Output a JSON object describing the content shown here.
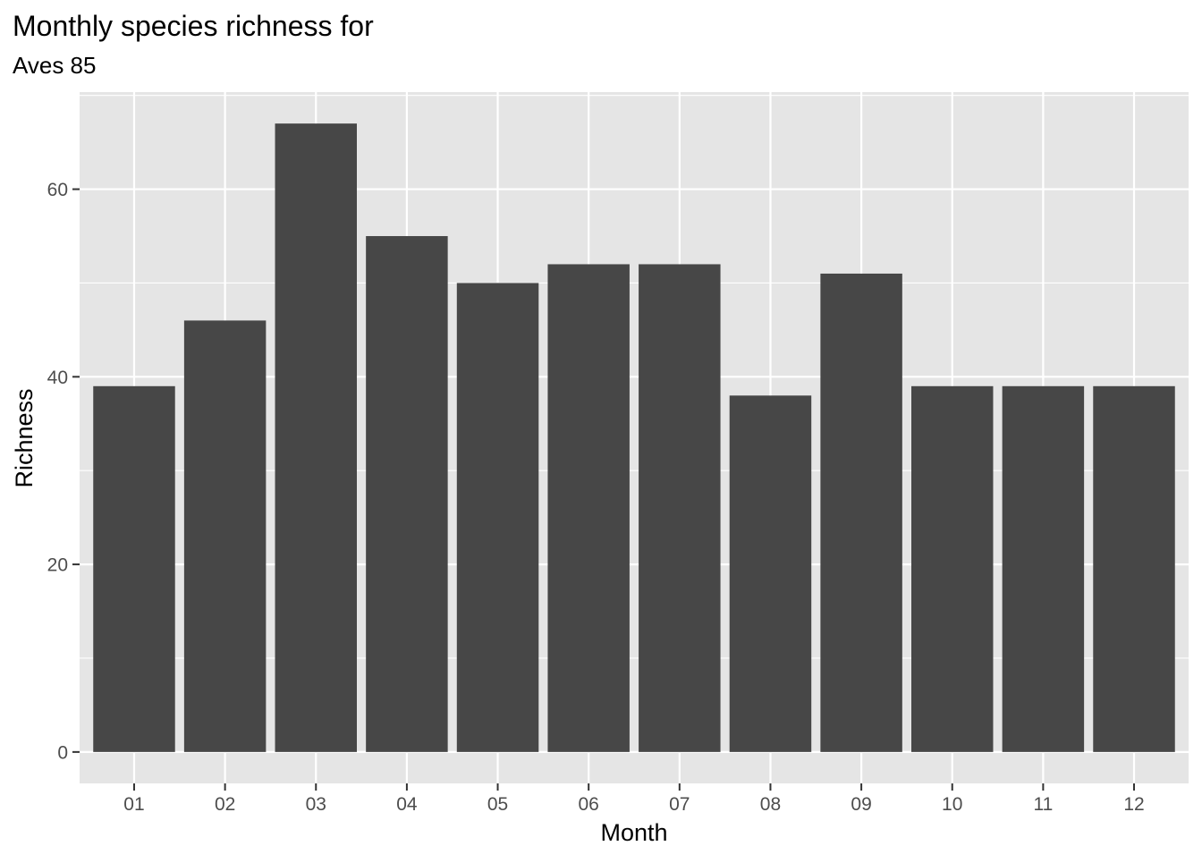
{
  "chart_data": {
    "type": "bar",
    "title": "Monthly species richness for",
    "subtitle": "Aves 85",
    "xlabel": "Month",
    "ylabel": "Richness",
    "categories": [
      "01",
      "02",
      "03",
      "04",
      "05",
      "06",
      "07",
      "08",
      "09",
      "10",
      "11",
      "12"
    ],
    "values": [
      39,
      46,
      67,
      55,
      50,
      52,
      52,
      38,
      51,
      39,
      39,
      39
    ],
    "ylim": [
      0,
      70
    ],
    "yticks": [
      0,
      20,
      40,
      60
    ],
    "grid": true,
    "legend": "none",
    "colors": {
      "bar": "#474747",
      "panel": "#e5e5e5",
      "grid": "#ffffff",
      "tick_text": "#4d4d4d"
    }
  }
}
